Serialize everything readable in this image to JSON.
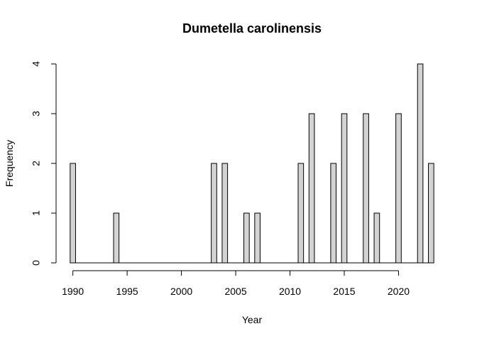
{
  "chart_data": {
    "type": "bar",
    "title": "Dumetella carolinensis",
    "xlabel": "Year",
    "ylabel": "Frequency",
    "x": [
      1990,
      1991,
      1992,
      1993,
      1994,
      1995,
      1996,
      1997,
      1998,
      1999,
      2000,
      2001,
      2002,
      2003,
      2004,
      2005,
      2006,
      2007,
      2008,
      2009,
      2010,
      2011,
      2012,
      2013,
      2014,
      2015,
      2016,
      2017,
      2018,
      2019,
      2020,
      2021,
      2022,
      2023
    ],
    "values": [
      2,
      0,
      0,
      0,
      1,
      0,
      0,
      0,
      0,
      0,
      0,
      0,
      0,
      2,
      2,
      0,
      1,
      1,
      0,
      0,
      0,
      2,
      3,
      0,
      2,
      3,
      0,
      3,
      1,
      0,
      3,
      0,
      4,
      2
    ],
    "xlim": [
      1990,
      2023
    ],
    "ylim": [
      0,
      4
    ],
    "xticks": [
      "1990",
      "1995",
      "2000",
      "2005",
      "2010",
      "2015",
      "2020"
    ],
    "yticks": [
      "0",
      "1",
      "2",
      "3",
      "4"
    ],
    "bar_color": "#d3d3d3",
    "border_color": "#000000",
    "grid": false,
    "legend": "none"
  }
}
